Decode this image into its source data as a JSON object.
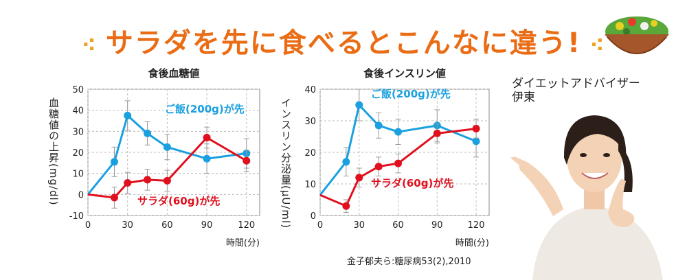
{
  "headline": "サラダを先に食べるとこんなに違う!",
  "colors": {
    "accent": "#ea6c15",
    "rice": "#1aa0e0",
    "salad": "#e0101e"
  },
  "caption": {
    "line1": "ダイエットアドバイザー",
    "line2": "伊東"
  },
  "credit": "金子郁夫ら:糖尿病53(2),2010",
  "chart_data": [
    {
      "type": "line",
      "title": "食後血糖値",
      "ylabel": "血糖値の上昇(mg/dl)",
      "xlabel": "時間(分)",
      "xlim": [
        0,
        130
      ],
      "ylim": [
        -10,
        50
      ],
      "xticks": [
        0,
        30,
        60,
        90,
        120
      ],
      "yticks": [
        -10,
        0,
        10,
        20,
        30,
        40,
        50
      ],
      "series": [
        {
          "name": "ご飯(200g)が先",
          "color": "#1aa0e0",
          "x": [
            0,
            20,
            30,
            45,
            60,
            90,
            120
          ],
          "y": [
            0,
            15.5,
            37.5,
            29,
            22.5,
            17,
            19.5
          ],
          "err": [
            0,
            7,
            7,
            5.5,
            6,
            7,
            7
          ]
        },
        {
          "name": "サラダ(60g)が先",
          "color": "#e0101e",
          "x": [
            0,
            20,
            30,
            45,
            60,
            90,
            120
          ],
          "y": [
            0,
            -1.5,
            5.5,
            7,
            6.5,
            27,
            16
          ],
          "err": [
            0,
            5,
            5,
            5,
            5,
            5,
            5
          ]
        }
      ]
    },
    {
      "type": "line",
      "title": "食後インスリン値",
      "ylabel": "インスリン分泌量(μU/ml)",
      "xlabel": "時間(分)",
      "xlim": [
        0,
        130
      ],
      "ylim": [
        0,
        40
      ],
      "xticks": [
        0,
        30,
        60,
        90,
        120
      ],
      "yticks": [
        0,
        10,
        20,
        30,
        40
      ],
      "series": [
        {
          "name": "ご飯(200g)が先",
          "color": "#1aa0e0",
          "x": [
            0,
            20,
            30,
            45,
            60,
            90,
            120
          ],
          "y": [
            6.5,
            17,
            35,
            28.5,
            26.5,
            28.5,
            23.5
          ],
          "err": [
            0,
            4.5,
            5,
            4,
            4,
            5,
            5
          ]
        },
        {
          "name": "サラダ(60g)が先",
          "color": "#e0101e",
          "x": [
            0,
            20,
            30,
            45,
            60,
            90,
            120
          ],
          "y": [
            6.5,
            3,
            12,
            15.5,
            16.5,
            26,
            27.5
          ],
          "err": [
            0,
            2,
            3,
            3,
            3,
            3,
            3
          ]
        }
      ]
    }
  ]
}
